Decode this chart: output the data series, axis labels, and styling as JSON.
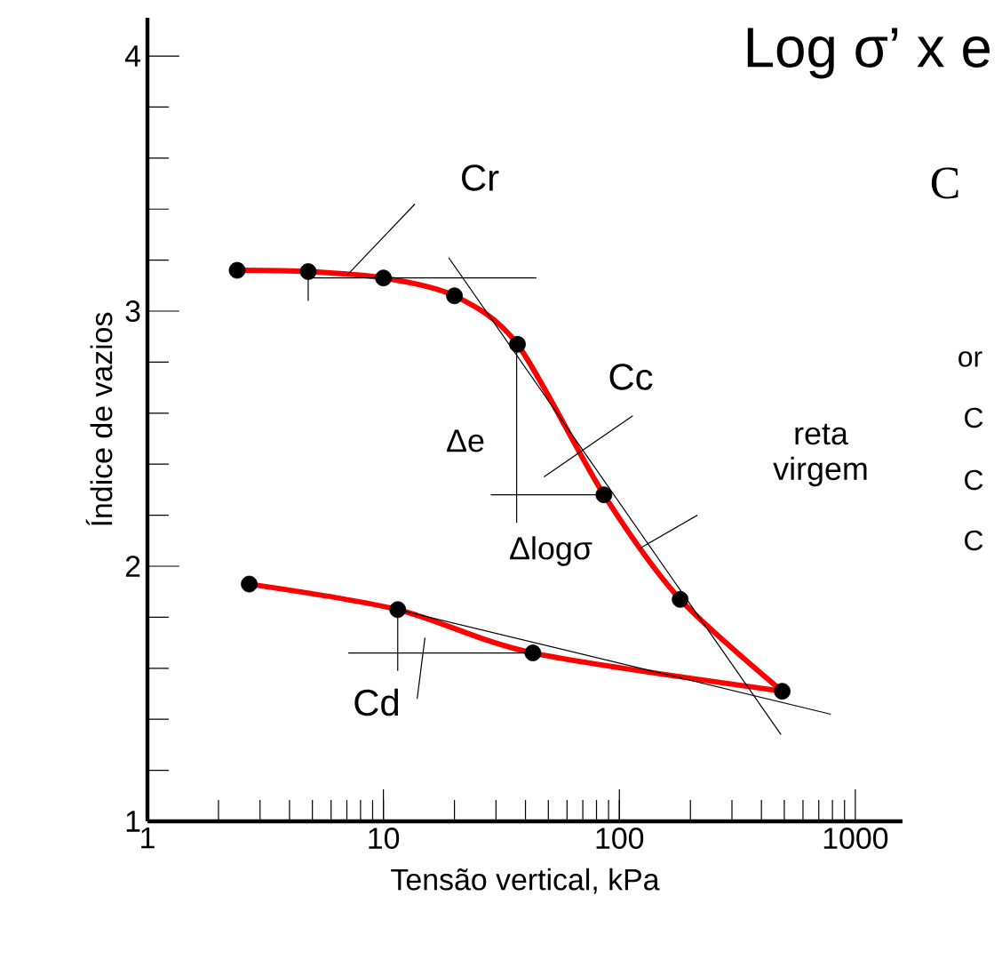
{
  "chart_data": {
    "type": "line",
    "title": "Log σ’ x e",
    "xlabel": "Tensão vertical, kPa",
    "ylabel": "Índice de vazios",
    "log": "x",
    "xlim": [
      1,
      1585
    ],
    "xticks": [
      1,
      10,
      100,
      1000
    ],
    "ylim": [
      1,
      4.15
    ],
    "yticks": [
      1,
      2,
      3,
      4
    ],
    "grid": false,
    "series": [
      {
        "color": "#ff0000",
        "marker": "none",
        "x": [
          2.4,
          4.8,
          10,
          20,
          37,
          86,
          181,
          490
        ],
        "values": [
          3.16,
          3.155,
          3.13,
          3.06,
          2.87,
          2.28,
          1.87,
          1.51
        ]
      },
      {
        "color": "#ff0000",
        "marker": "none",
        "x": [
          2.7,
          11.5,
          43,
          490
        ],
        "values": [
          1.93,
          1.83,
          1.66,
          1.51
        ]
      },
      {
        "type": "scatter",
        "color": "#000000",
        "marker": "circle",
        "x": [
          2.4,
          4.8,
          10,
          20,
          37,
          86,
          181,
          490
        ],
        "values": [
          3.16,
          3.155,
          3.13,
          3.06,
          2.87,
          2.28,
          1.87,
          1.51
        ]
      },
      {
        "type": "scatter",
        "color": "#000000",
        "marker": "circle",
        "x": [
          2.7,
          11.5,
          43
        ],
        "values": [
          1.93,
          1.83,
          1.66
        ]
      },
      {
        "color": "#000000",
        "marker": "none",
        "x": [
          18.9,
          484
        ],
        "values": [
          3.21,
          1.34
        ]
      },
      {
        "color": "#000000",
        "marker": "none",
        "x": [
          4.8,
          44.5
        ],
        "values": [
          3.13,
          3.13
        ]
      },
      {
        "color": "#000000",
        "marker": "none",
        "x": [
          11.5,
          787
        ],
        "values": [
          1.83,
          1.42
        ]
      },
      {
        "color": "#000000",
        "marker": "none",
        "x": [
          7.1,
          43
        ],
        "values": [
          1.66,
          1.66
        ]
      },
      {
        "color": "#000000",
        "marker": "none",
        "x": [
          36.7,
          36.7
        ],
        "values": [
          2.87,
          2.17
        ]
      },
      {
        "color": "#000000",
        "marker": "none",
        "x": [
          28.5,
          86
        ],
        "values": [
          2.28,
          2.28
        ]
      },
      {
        "color": "#000000",
        "marker": "none",
        "x": [
          4.8,
          4.8
        ],
        "values": [
          3.155,
          3.04
        ]
      },
      {
        "color": "#000000",
        "marker": "none",
        "x": [
          11.5,
          11.5
        ],
        "values": [
          1.83,
          1.59
        ]
      },
      {
        "color": "#000000",
        "marker": "none",
        "x": [
          13.6,
          7.0
        ],
        "values": [
          3.42,
          3.14
        ]
      },
      {
        "color": "#000000",
        "marker": "none",
        "x": [
          114,
          47.9
        ],
        "values": [
          2.59,
          2.35
        ]
      },
      {
        "color": "#000000",
        "marker": "none",
        "x": [
          214,
          122
        ],
        "values": [
          2.2,
          2.07
        ]
      },
      {
        "color": "#000000",
        "marker": "none",
        "x": [
          15.0,
          13.9
        ],
        "values": [
          1.72,
          1.48
        ]
      }
    ],
    "annotations": [
      "Cr",
      "Cc",
      "reta virgem",
      "Δe",
      "Δlogσ",
      "Cd",
      "C",
      "or",
      "C",
      "C",
      "C"
    ]
  }
}
